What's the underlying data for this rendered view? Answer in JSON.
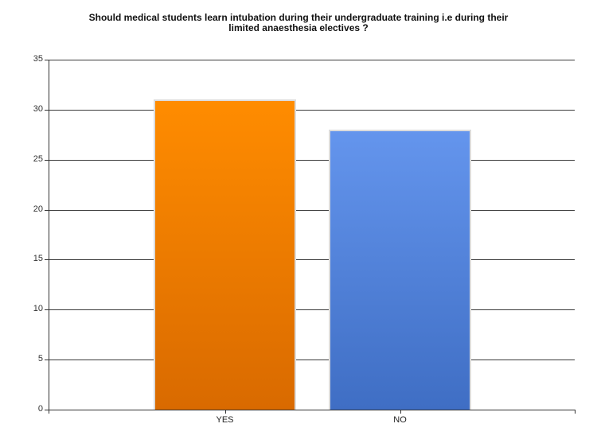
{
  "title_line1": "Should medical students learn intubation during their undergraduate training i.e during their",
  "title_line2": "limited anaesthesia electives ?",
  "chart_data": {
    "type": "bar",
    "title": "Should medical students learn intubation during their undergraduate training i.e during their limited anaesthesia electives ?",
    "categories": [
      "YES",
      "NO"
    ],
    "values": [
      31,
      28
    ],
    "colors": [
      "#ff8c00",
      "#6495ed"
    ],
    "xlabel": "",
    "ylabel": "",
    "ylim": [
      0,
      35
    ],
    "yticks": [
      0,
      5,
      10,
      15,
      20,
      25,
      30,
      35
    ],
    "grid": true,
    "legend": "none"
  },
  "ticks": [
    "0",
    "5",
    "10",
    "15",
    "20",
    "25",
    "30",
    "35"
  ]
}
